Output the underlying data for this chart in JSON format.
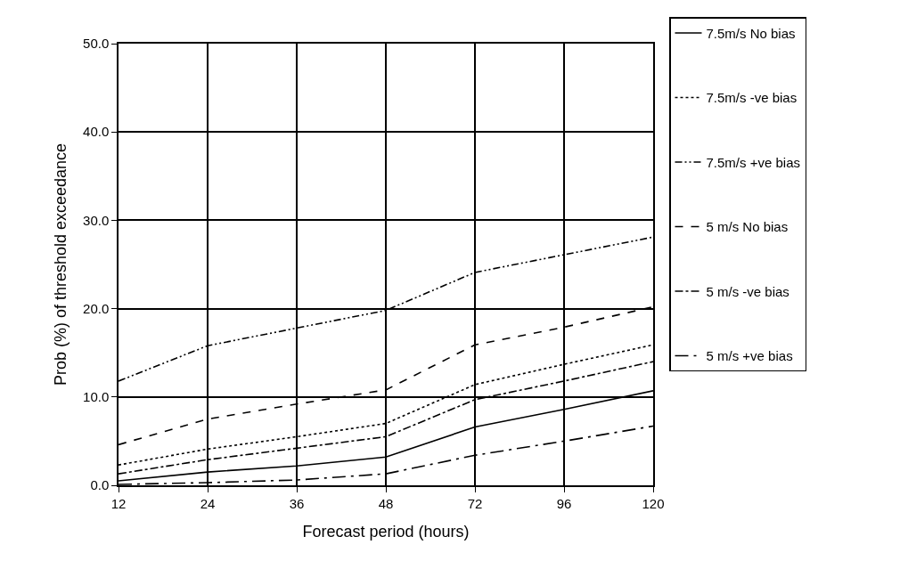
{
  "chart_data": {
    "type": "line",
    "xlabel": "Forecast period (hours)",
    "ylabel": "Prob (%) of threshold exceedance",
    "categories": [
      "12",
      "24",
      "36",
      "48",
      "72",
      "96",
      "120"
    ],
    "ylim": [
      0,
      50
    ],
    "yticks": [
      {
        "value": 0,
        "label": "0.0"
      },
      {
        "value": 10,
        "label": "10.0"
      },
      {
        "value": 20,
        "label": "20.0"
      },
      {
        "value": 30,
        "label": "30.0"
      },
      {
        "value": 40,
        "label": "40.0"
      },
      {
        "value": 50,
        "label": "50.0"
      }
    ],
    "grid": true,
    "legend": "right",
    "marker": "none",
    "series": [
      {
        "name": "7.5m/s No bias",
        "color": "#000000",
        "line_style": "solid",
        "values": [
          0.5,
          1.5,
          2.2,
          3.2,
          6.6,
          8.6,
          10.7
        ]
      },
      {
        "name": "7.5m/s -ve bias",
        "color": "#000000",
        "line_style": "dotted",
        "values": [
          2.3,
          4.1,
          5.5,
          7.0,
          11.4,
          13.7,
          15.9
        ]
      },
      {
        "name": "7.5m/s +ve bias",
        "color": "#000000",
        "line_style": "dashdotdot",
        "values": [
          11.8,
          15.8,
          17.8,
          19.8,
          24.1,
          26.1,
          28.1
        ]
      },
      {
        "name": "5 m/s No bias",
        "color": "#000000",
        "line_style": "dashed",
        "values": [
          4.6,
          7.5,
          9.2,
          10.8,
          15.9,
          17.9,
          20.2
        ]
      },
      {
        "name": "5 m/s -ve bias",
        "color": "#000000",
        "line_style": "dashdot",
        "values": [
          1.3,
          2.9,
          4.2,
          5.5,
          9.7,
          11.8,
          14.0
        ]
      },
      {
        "name": "5 m/s +ve bias",
        "color": "#000000",
        "line_style": "longdashdot",
        "values": [
          0.1,
          0.3,
          0.6,
          1.3,
          3.4,
          5.0,
          6.7
        ]
      }
    ]
  }
}
